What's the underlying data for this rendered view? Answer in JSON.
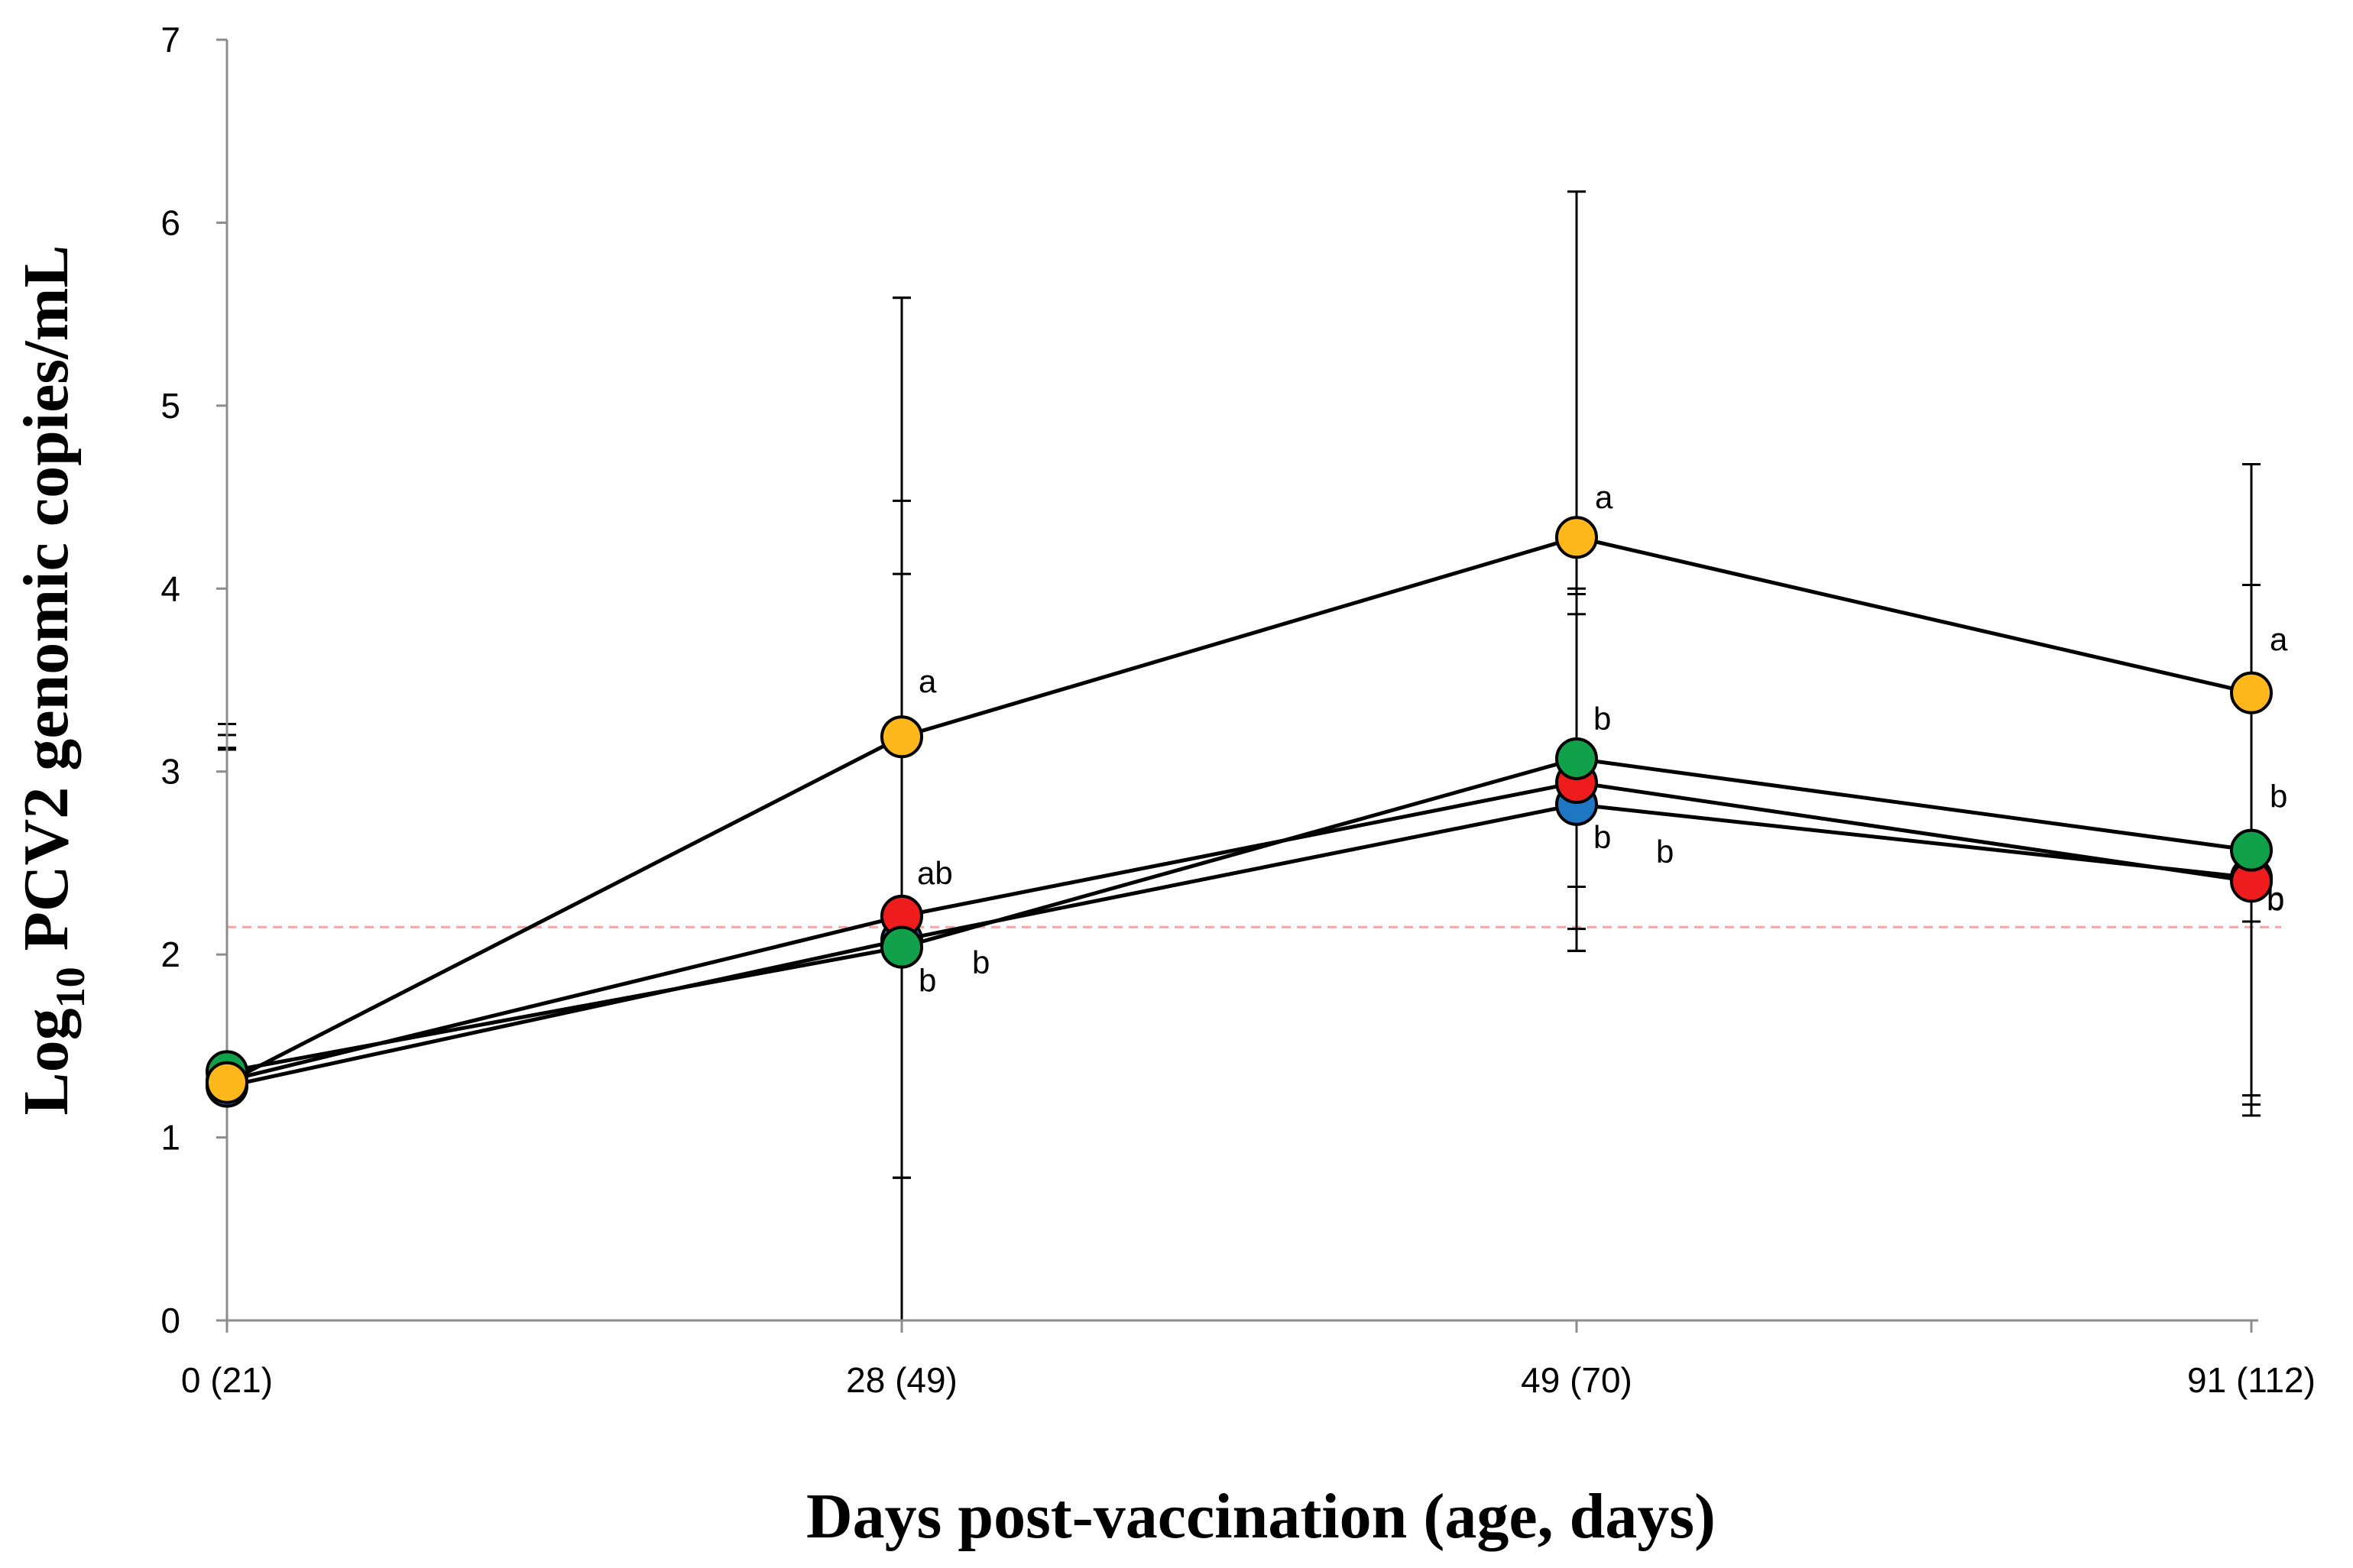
{
  "chart_data": {
    "type": "line",
    "title": "",
    "xlabel": "Days post-vaccination (age, days)",
    "ylabel_main": "Log",
    "ylabel_sub": "10",
    "ylabel_rest": " PCV2 genomic copies/mL",
    "categories": [
      "0 (21)",
      "28 (49)",
      "49 (70)",
      "91 (112)"
    ],
    "ylim": [
      0,
      7
    ],
    "yticks": [
      0,
      1,
      2,
      3,
      4,
      5,
      6,
      7
    ],
    "reference_line": {
      "y": 2.15,
      "color": "#f4a6a6"
    },
    "series": [
      {
        "name": "blue group",
        "color": "#1f77c4",
        "values": [
          1.28,
          2.08,
          2.82,
          2.42
        ],
        "err_high": [
          3.12,
          4.08,
          3.97,
          4.02
        ],
        "err_low": [
          0.0,
          0.78,
          2.02,
          1.23
        ],
        "labels": [
          "",
          "b",
          "b",
          "b"
        ]
      },
      {
        "name": "red group",
        "color": "#ee1c1c",
        "values": [
          1.31,
          2.21,
          2.94,
          2.4
        ],
        "err_high": [
          3.26,
          4.48,
          3.86,
          3.52
        ],
        "err_low": [
          0.0,
          0.0,
          2.02,
          1.12
        ],
        "labels": [
          "",
          "ab",
          "b",
          "b"
        ]
      },
      {
        "name": "green group",
        "color": "#11a14a",
        "values": [
          1.36,
          2.04,
          3.07,
          2.57
        ],
        "err_high": [
          3.13,
          5.59,
          4.0,
          4.68
        ],
        "err_low": [
          0.0,
          0.0,
          2.14,
          1.18
        ],
        "labels": [
          "",
          "b",
          "b",
          "b"
        ]
      },
      {
        "name": "yellow group",
        "color": "#ffb81c",
        "values": [
          1.3,
          3.19,
          4.28,
          3.43
        ],
        "err_high": [
          3.2,
          5.59,
          6.17,
          4.68
        ],
        "err_low": [
          0.0,
          0.78,
          2.37,
          2.18
        ],
        "labels": [
          "",
          "a",
          "a",
          "a"
        ]
      }
    ]
  }
}
